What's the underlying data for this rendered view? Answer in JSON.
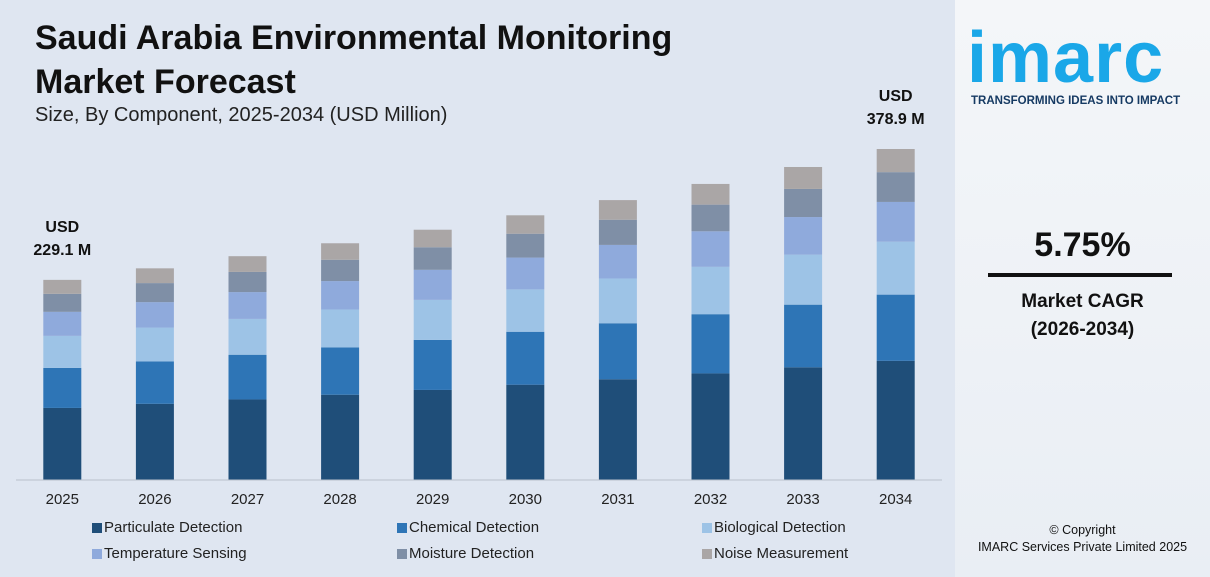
{
  "chart_data": {
    "type": "stacked_bar",
    "title": "Saudi Arabia Environmental Monitoring Market Forecast",
    "subtitle": "Size, By Component, 2025-2034 (USD Million)",
    "categories": [
      "2025",
      "2026",
      "2027",
      "2028",
      "2029",
      "2030",
      "2031",
      "2032",
      "2033",
      "2034"
    ],
    "series": [
      {
        "name": "Particulate Detection",
        "color": "#1f4e79",
        "values": [
          82.5,
          87.2,
          92.2,
          97.6,
          103.1,
          109.1,
          115.3,
          122.0,
          129.0,
          136.4
        ]
      },
      {
        "name": "Chemical Detection",
        "color": "#2e75b6",
        "values": [
          45.8,
          48.5,
          51.2,
          54.2,
          57.3,
          60.6,
          64.1,
          67.8,
          71.7,
          75.8
        ]
      },
      {
        "name": "Biological Detection",
        "color": "#9dc3e6",
        "values": [
          36.7,
          38.8,
          41.0,
          43.4,
          45.8,
          48.5,
          51.3,
          54.2,
          57.3,
          60.6
        ]
      },
      {
        "name": "Temperature Sensing",
        "color": "#8faadc",
        "values": [
          27.5,
          29.1,
          30.7,
          32.5,
          34.4,
          36.4,
          38.4,
          40.7,
          43.0,
          45.5
        ]
      },
      {
        "name": "Moisture Detection",
        "color": "#7f8fa6",
        "values": [
          20.6,
          21.8,
          23.1,
          24.4,
          25.8,
          27.3,
          28.8,
          30.5,
          32.2,
          34.1
        ]
      },
      {
        "name": "Noise Measurement",
        "color": "#aaa6a6",
        "values": [
          16.0,
          16.9,
          18.0,
          18.9,
          20.1,
          21.1,
          22.5,
          23.7,
          25.1,
          26.5
        ]
      }
    ],
    "annotations": [
      {
        "lines": [
          "USD",
          "229.1 M"
        ]
      },
      {
        "lines": [
          "USD",
          "378.9 M"
        ]
      }
    ]
  },
  "sidebar": {
    "logo": "imarc",
    "tagline": "TRANSFORMING IDEAS INTO IMPACT",
    "cagr": "5.75%",
    "cagr_label": "Market CAGR",
    "cagr_period": "(2026-2034)",
    "copyright": "© Copyright",
    "company": "IMARC Services Private Limited 2025"
  }
}
